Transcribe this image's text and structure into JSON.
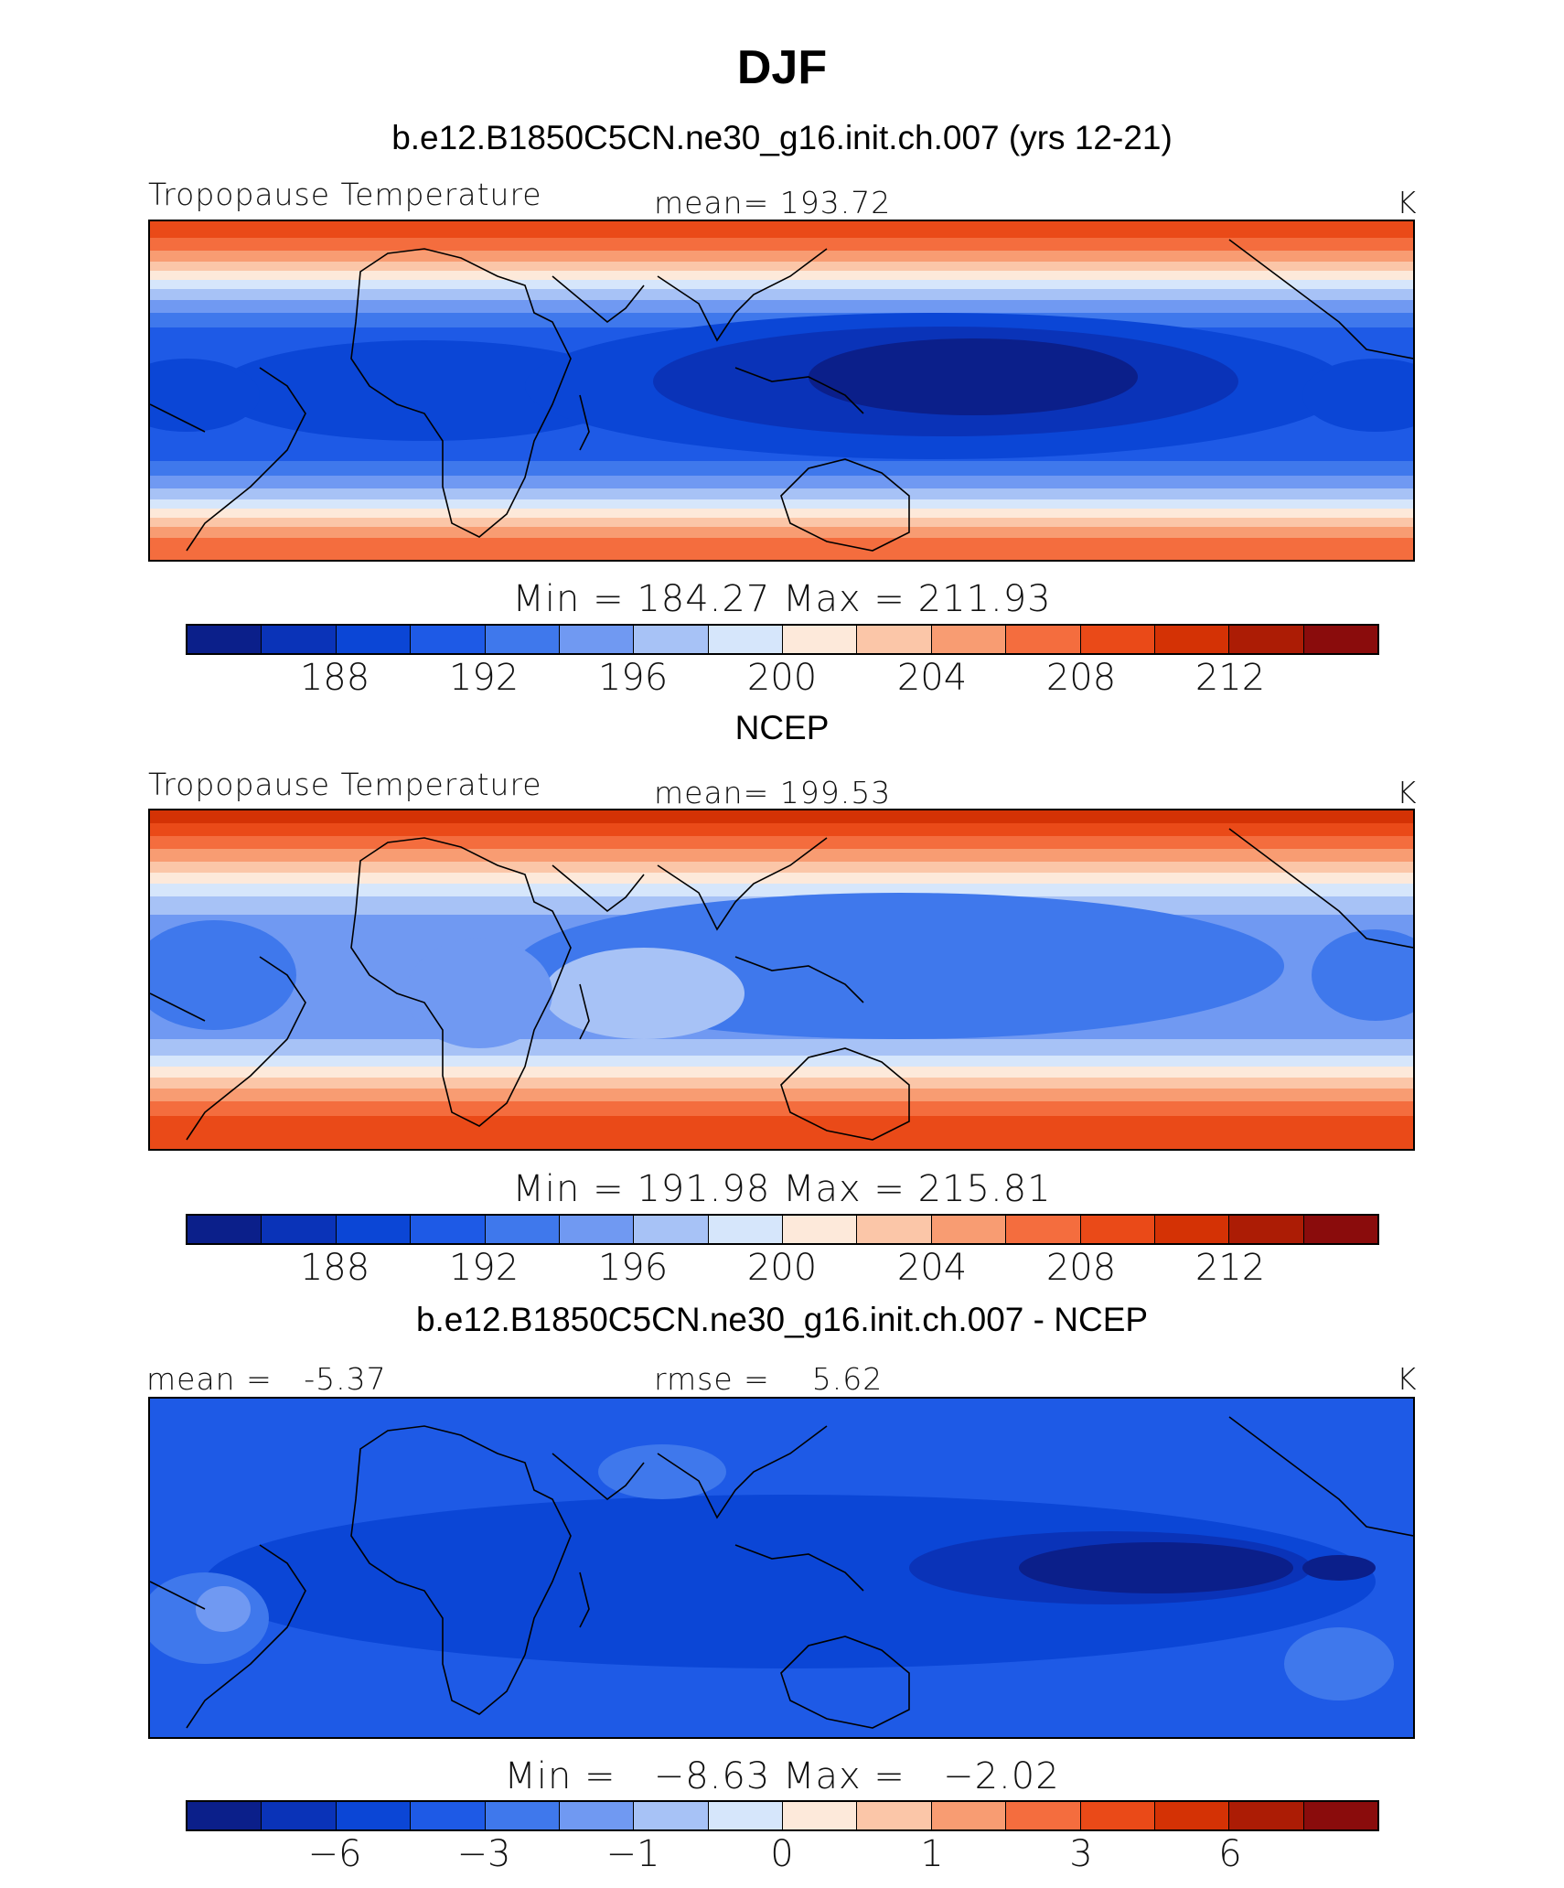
{
  "title": "DJF",
  "colors": [
    "#0b1f8a",
    "#0a33b8",
    "#0b46d6",
    "#1e5ae6",
    "#3f78ec",
    "#7099f2",
    "#a7c2f6",
    "#d6e6fb",
    "#fde9da",
    "#fbc6a8",
    "#f89c72",
    "#f46d3e",
    "#ea4a18",
    "#d43205",
    "#ac1c05",
    "#8a0c0c"
  ],
  "panels": [
    {
      "case_title": "b.e12.B1850C5CN.ne30_g16.init.ch.007 (yrs 12-21)",
      "left_label": "Tropopause Temperature",
      "center_label": "mean= 193.72",
      "units": "K",
      "min_max": "Min = 184.27 Max = 211.93",
      "colorbar_ticks": [
        "188",
        "192",
        "196",
        "200",
        "204",
        "208",
        "212"
      ]
    },
    {
      "case_title": "NCEP",
      "left_label": "Tropopause Temperature",
      "center_label": "mean= 199.53",
      "units": "K",
      "min_max": "Min = 191.98 Max = 215.81",
      "colorbar_ticks": [
        "188",
        "192",
        "196",
        "200",
        "204",
        "208",
        "212"
      ]
    },
    {
      "case_title": "b.e12.B1850C5CN.ne30_g16.init.ch.007 - NCEP",
      "left_label": "mean =   -5.37",
      "center_label": "rmse =    5.62",
      "units": "K",
      "min_max": "Min =   −8.63 Max =   −2.02",
      "colorbar_ticks": [
        "−6",
        "−3",
        "−1",
        "0",
        "1",
        "3",
        "6"
      ]
    }
  ]
}
